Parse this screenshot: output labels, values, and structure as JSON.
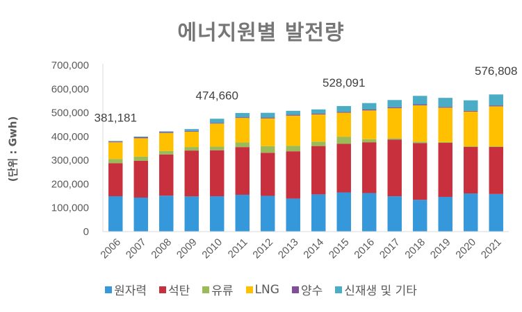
{
  "chart_data": {
    "type": "bar",
    "stacked": true,
    "title": "에너지원별 발전량",
    "xlabel": "",
    "ylabel": "(단위 : Gwh)",
    "ylim": [
      0,
      700000
    ],
    "yticks": [
      0,
      100000,
      200000,
      300000,
      400000,
      500000,
      600000,
      700000
    ],
    "ytick_labels": [
      "0",
      "100,000",
      "200,000",
      "300,000",
      "400,000",
      "500,000",
      "600,000",
      "700,000"
    ],
    "grid": false,
    "legend_position": "bottom",
    "categories": [
      "2006",
      "2007",
      "2008",
      "2009",
      "2010",
      "2011",
      "2012",
      "2013",
      "2014",
      "2015",
      "2016",
      "2017",
      "2018",
      "2019",
      "2020",
      "2021"
    ],
    "series": [
      {
        "name": "원자력",
        "color": "#3498DB",
        "values": [
          148749,
          142937,
          150958,
          147771,
          148596,
          154723,
          150327,
          138784,
          156407,
          164762,
          161995,
          148427,
          133505,
          145910,
          160184,
          158015
        ]
      },
      {
        "name": "석탄",
        "color": "#C9303E",
        "values": [
          139205,
          154674,
          173508,
          193144,
          193467,
          200675,
          181199,
          199017,
          203446,
          204230,
          213803,
          238799,
          239033,
          227384,
          196333,
          197966
        ]
      },
      {
        "name": "유류",
        "color": "#9BBB59",
        "values": [
          17257,
          17818,
          14767,
          14716,
          15478,
          19584,
          27936,
          23214,
          18254,
          30251,
          12813,
          5711,
          5740,
          3292,
          2264,
          2524
        ]
      },
      {
        "name": "LNG",
        "color": "#FFC000",
        "values": [
          70460,
          77245,
          75840,
          64761,
          96734,
          102860,
          116595,
          126734,
          114642,
          100785,
          121018,
          126067,
          152924,
          144355,
          145911,
          168262
        ]
      },
      {
        "name": "양수",
        "color": "#7F4F9A",
        "values": [
          2990,
          3938,
          3591,
          2807,
          2942,
          2956,
          3546,
          4118,
          3821,
          3722,
          3706,
          3949,
          3966,
          3460,
          3303,
          3692
        ]
      },
      {
        "name": "신재생 및 기타",
        "color": "#4BACC6",
        "values": [
          2520,
          3000,
          3036,
          8002,
          17443,
          18012,
          20003,
          16133,
          17331,
          24341,
          27250,
          30416,
          35716,
          38122,
          44137,
          46349
        ]
      }
    ],
    "total_labels": [
      {
        "category": "2006",
        "text": "381,181"
      },
      {
        "category": "2010",
        "text": "474,660"
      },
      {
        "category": "2015",
        "text": "528,091"
      },
      {
        "category": "2021",
        "text": "576,808"
      }
    ]
  }
}
